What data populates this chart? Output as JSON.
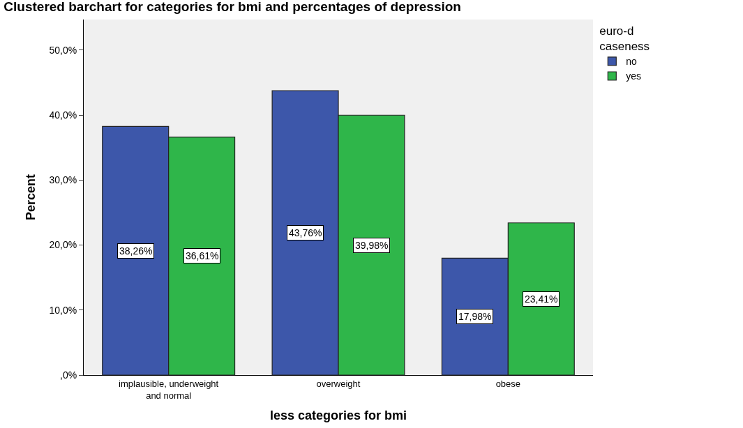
{
  "chart_data": {
    "type": "bar",
    "title": "Clustered barchart for categories for bmi and percentages of depression",
    "xlabel": "less categories for bmi",
    "ylabel": "Percent",
    "legend_title": "euro-d caseness",
    "legend": "top right",
    "categories": [
      "implausible, underweight and normal",
      "overweight",
      "obese"
    ],
    "series": [
      {
        "name": "no",
        "color": "#3d57aa",
        "values": [
          38.26,
          43.76,
          17.98
        ],
        "value_labels": [
          "38,26%",
          "43,76%",
          "17,98%"
        ]
      },
      {
        "name": "yes",
        "color": "#2fb64a",
        "values": [
          36.61,
          39.98,
          23.41
        ],
        "value_labels": [
          "36,61%",
          "39,98%",
          "23,41%"
        ]
      }
    ],
    "ylim": [
      0,
      54.7
    ],
    "yticks": [
      {
        "value": 0,
        "label": ",0%"
      },
      {
        "value": 10,
        "label": "10,0%"
      },
      {
        "value": 20,
        "label": "20,0%"
      },
      {
        "value": 30,
        "label": "30,0%"
      },
      {
        "value": 40,
        "label": "40,0%"
      },
      {
        "value": 50,
        "label": "50,0%"
      }
    ],
    "grid": false
  }
}
